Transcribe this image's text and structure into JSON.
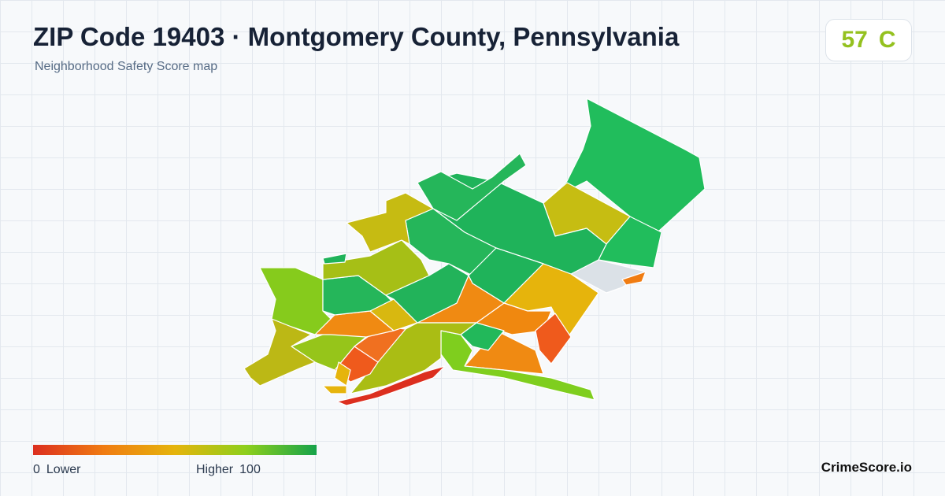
{
  "header": {
    "title": "ZIP Code 19403 · Montgomery County, Pennsylvania",
    "subtitle": "Neighborhood Safety Score map"
  },
  "score": {
    "value": 57,
    "grade": "C"
  },
  "legend": {
    "min": 0,
    "min_label": "Lower",
    "max_label": "Higher",
    "max": 100
  },
  "footer": {
    "brand": "CrimeScore.io"
  }
}
